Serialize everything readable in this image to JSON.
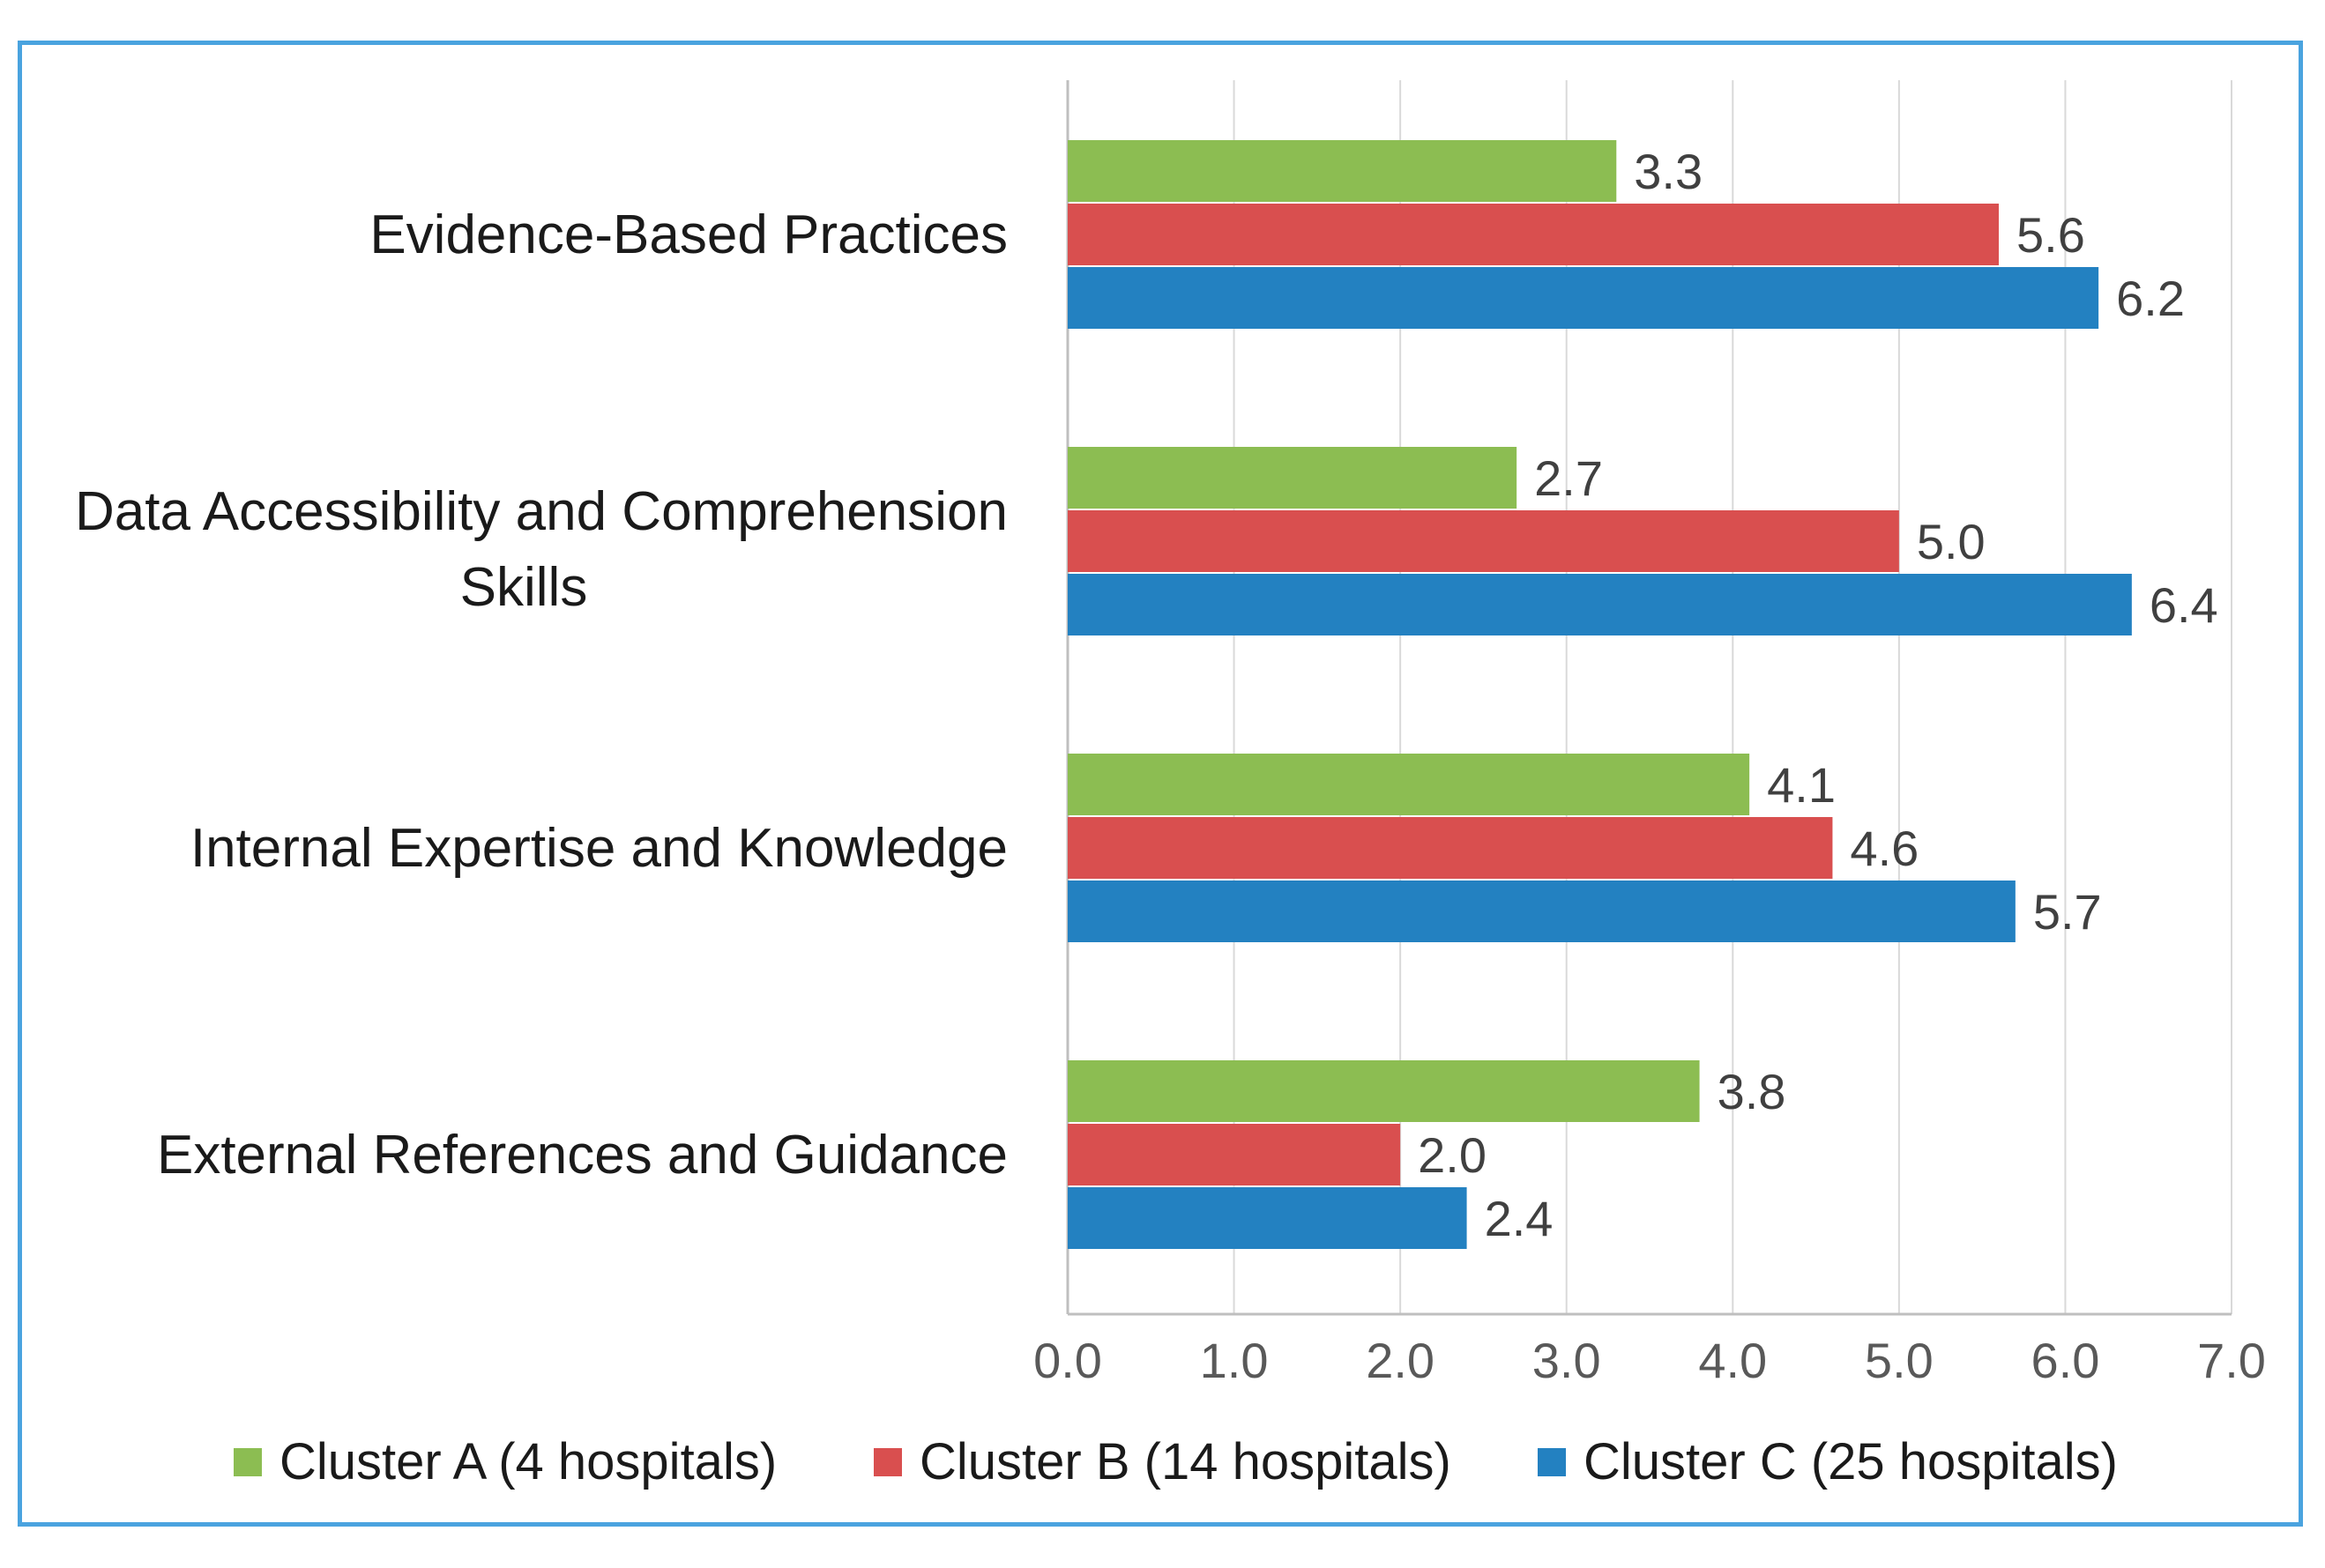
{
  "chart_data": {
    "type": "bar",
    "orientation": "horizontal",
    "categories": [
      [
        "Evidence-Based Practices"
      ],
      [
        "Data Accessibility and Comprehension",
        "Skills"
      ],
      [
        "Internal Expertise and Knowledge"
      ],
      [
        "External References and Guidance"
      ]
    ],
    "series": [
      {
        "name": "Cluster A (4 hospitals)",
        "color": "#8cbd52",
        "values": [
          3.3,
          2.7,
          4.1,
          3.8
        ],
        "labels": [
          "3.3",
          "2.7",
          "4.1",
          "3.8"
        ]
      },
      {
        "name": "Cluster B (14 hospitals)",
        "color": "#d94f4f",
        "values": [
          5.6,
          5.0,
          4.6,
          2.0
        ],
        "labels": [
          "5.6",
          "5.0",
          "4.6",
          "2.0"
        ]
      },
      {
        "name": "Cluster C (25 hospitals)",
        "color": "#2381c1",
        "values": [
          6.2,
          6.4,
          5.7,
          2.4
        ],
        "labels": [
          "6.2",
          "6.4",
          "5.7",
          "2.4"
        ]
      }
    ],
    "xlim": [
      0,
      7
    ],
    "xticks": [
      "0.0",
      "1.0",
      "2.0",
      "3.0",
      "4.0",
      "5.0",
      "6.0",
      "7.0"
    ],
    "grid": true,
    "legend": "bottom",
    "title": "",
    "xlabel": "",
    "ylabel": ""
  }
}
